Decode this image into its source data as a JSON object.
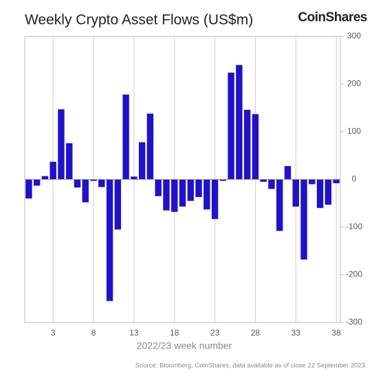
{
  "chart_data": {
    "type": "bar",
    "title": "Weekly Crypto Asset Flows (US$m)",
    "brand": "CoinShares",
    "x_label": "2022/23 week number",
    "source": "Source: Bloomberg, CoinShares, data available as of close 22 September 2023",
    "color": "#2012c8",
    "x": [
      0,
      1,
      2,
      3,
      4,
      5,
      6,
      7,
      8,
      9,
      10,
      11,
      12,
      13,
      14,
      15,
      16,
      17,
      18,
      19,
      20,
      21,
      22,
      23,
      24,
      25,
      26,
      27,
      28,
      29,
      30,
      31,
      32,
      33,
      34,
      35,
      36,
      37,
      38
    ],
    "values": [
      -40,
      -13,
      7,
      37,
      147,
      76,
      -17,
      -48,
      -3,
      -16,
      -255,
      -105,
      178,
      6,
      78,
      138,
      -35,
      -65,
      -68,
      -57,
      -45,
      -37,
      -63,
      -83,
      -3,
      224,
      240,
      146,
      137,
      -5,
      -20,
      -108,
      28,
      -57,
      -168,
      -10,
      -60,
      -53,
      -8
    ],
    "xlim": [
      -0.5,
      38.5
    ],
    "xticks": [
      3,
      8,
      13,
      18,
      23,
      28,
      33,
      38
    ],
    "ylim": [
      -300,
      300
    ],
    "yticks": [
      -300,
      -200,
      -100,
      0,
      100,
      200,
      300
    ],
    "grid": true
  }
}
